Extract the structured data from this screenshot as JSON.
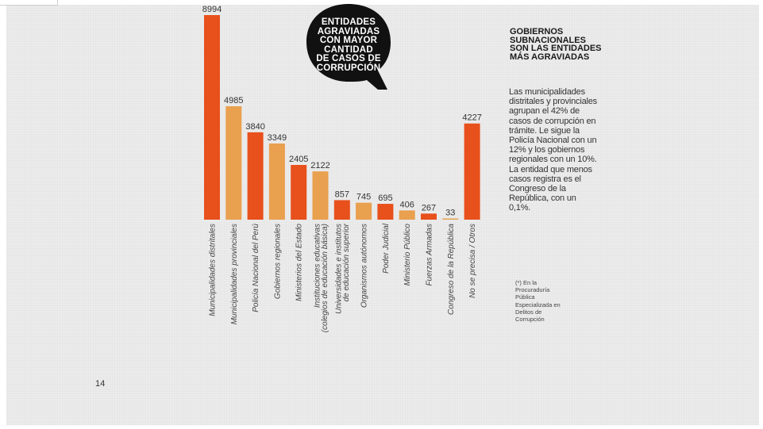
{
  "chart_data": {
    "type": "bar",
    "title": "ENTIDADES AGRAVIADAS CON MAYOR CANTIDAD DE CASOS DE CORRUPCIÓN",
    "categories": [
      "Municipalidades distritales",
      "Municipalidades provinciales",
      "Policía Nacional del Perú",
      "Gobiernos regionales",
      "Ministerios del Estado",
      "Instituciones educativas\n(colegios de educación básica)",
      "Universidades e institutos\nde educación superior",
      "Organismos autónomos",
      "Poder Judicial",
      "Ministerio Público",
      "Fuerzas Armadas",
      "Congreso de la República",
      "No se precisa / Otros"
    ],
    "values": [
      8994,
      4985,
      3840,
      3349,
      2405,
      2122,
      857,
      745,
      695,
      406,
      267,
      33,
      4227
    ],
    "bar_colors": [
      "#e8501c",
      "#e9a04f",
      "#e8501c",
      "#e9a04f",
      "#e8501c",
      "#e9a04f",
      "#e8501c",
      "#e9a04f",
      "#e8501c",
      "#e9a04f",
      "#e8501c",
      "#e9a04f",
      "#e8501c"
    ],
    "xlabel": "",
    "ylabel": "",
    "ylim": [
      0,
      8994
    ],
    "grid": false,
    "legend": "none"
  },
  "bubble": {
    "lines": [
      "ENTIDADES",
      "AGRAVIADAS",
      "CON MAYOR",
      "CANTIDAD",
      "DE CASOS DE",
      "CORRUPCIÓN"
    ]
  },
  "sidebar": {
    "title": "GOBIERNOS SUBNACIONALES SON LAS ENTIDADES MÁS AGRAVIADAS",
    "body": "Las municipalidades distritales y provinciales agrupan el 42% de casos de corrupción en trámite. Le sigue la Policía Nacional con un 12% y los gobiernos regionales con un 10%. La entidad que menos casos registra es el Congreso de la República, con un 0,1%.",
    "footnote": "(*) En la Procuraduría Pública Especializada en Delitos de Corrupción"
  },
  "page_number": "14",
  "colors": {
    "accent_dark": "#e8501c",
    "accent_light": "#e9a04f",
    "bubble": "#111111"
  }
}
